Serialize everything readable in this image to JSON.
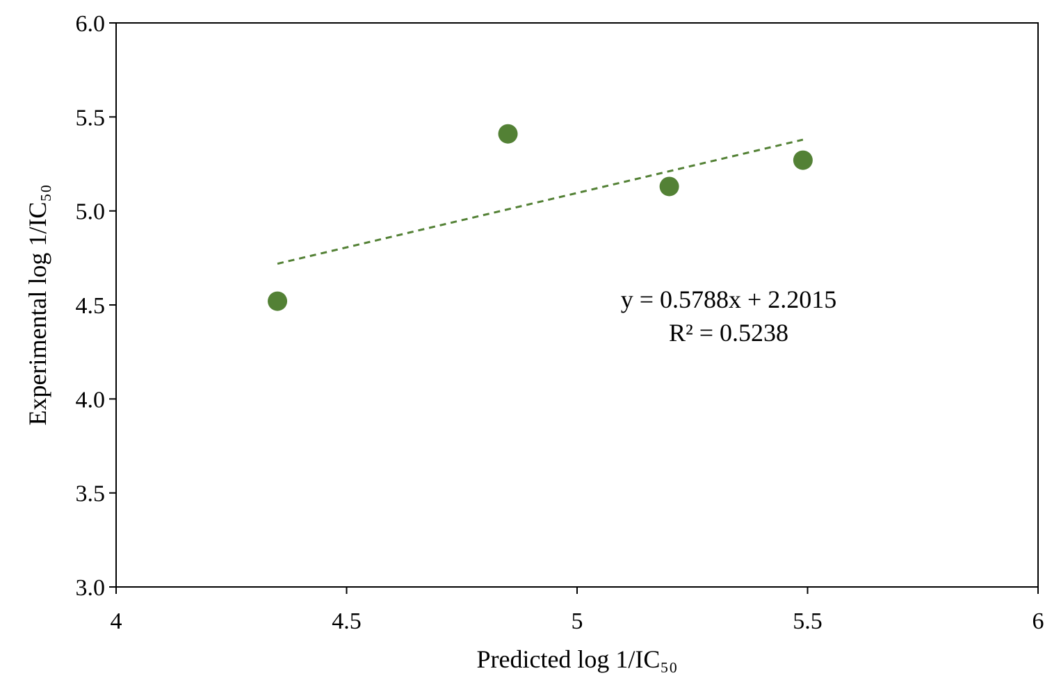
{
  "chart_data": {
    "type": "scatter",
    "xlabel": "Predicted log 1/IC₅₀",
    "ylabel": "Experimental log 1/IC₅₀",
    "xlim": [
      4,
      6
    ],
    "ylim": [
      3.0,
      6.0
    ],
    "x_ticks": [
      "4",
      "4.5",
      "5",
      "5.5",
      "6"
    ],
    "y_ticks": [
      "3.0",
      "3.5",
      "4.0",
      "4.5",
      "5.0",
      "5.5",
      "6.0"
    ],
    "grid": false,
    "series": [
      {
        "points": [
          {
            "x": 4.35,
            "y": 4.52
          },
          {
            "x": 4.85,
            "y": 5.41
          },
          {
            "x": 5.2,
            "y": 5.13
          },
          {
            "x": 5.49,
            "y": 5.27
          }
        ],
        "color": "#538135"
      }
    ],
    "trendline": {
      "slope": 0.5788,
      "intercept": 2.2015,
      "x_range": [
        4.35,
        5.49
      ],
      "style": "dashed",
      "color": "#538135",
      "equation": "y = 0.5788x + 2.2015",
      "r_squared": "R² = 0.5238"
    }
  }
}
